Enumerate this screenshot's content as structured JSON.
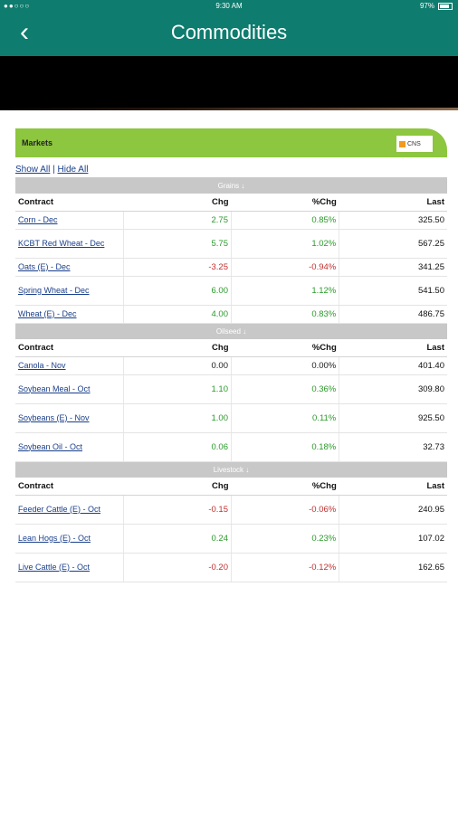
{
  "status": {
    "signal": "●●○○○",
    "time": "9:30 AM",
    "battery": "97%"
  },
  "nav": {
    "back_glyph": "‹",
    "title": "Commodities"
  },
  "panel": {
    "title": "Markets",
    "logo": "CNS",
    "show_all": "Show All",
    "separator": " | ",
    "hide_all": "Hide All"
  },
  "columns": {
    "contract": "Contract",
    "chg": "Chg",
    "pct": "%Chg",
    "last": "Last"
  },
  "sections": [
    {
      "name": "Grains ↓",
      "rows": [
        {
          "contract": "Corn - Dec",
          "chg": "2.75",
          "pct": "0.85%",
          "last": "325.50",
          "dir": "up",
          "tall": false
        },
        {
          "contract": "KCBT Red Wheat - Dec",
          "chg": "5.75",
          "pct": "1.02%",
          "last": "567.25",
          "dir": "up",
          "tall": true
        },
        {
          "contract": "Oats (E) - Dec",
          "chg": "-3.25",
          "pct": "-0.94%",
          "last": "341.25",
          "dir": "down",
          "tall": false
        },
        {
          "contract": "Spring Wheat - Dec",
          "chg": "6.00",
          "pct": "1.12%",
          "last": "541.50",
          "dir": "up",
          "tall": true
        },
        {
          "contract": "Wheat (E) - Dec",
          "chg": "4.00",
          "pct": "0.83%",
          "last": "486.75",
          "dir": "up",
          "tall": false
        }
      ]
    },
    {
      "name": "Oilseed ↓",
      "rows": [
        {
          "contract": "Canola - Nov",
          "chg": "0.00",
          "pct": "0.00%",
          "last": "401.40",
          "dir": "flat",
          "tall": false
        },
        {
          "contract": "Soybean Meal - Oct",
          "chg": "1.10",
          "pct": "0.36%",
          "last": "309.80",
          "dir": "up",
          "tall": true
        },
        {
          "contract": "Soybeans (E) - Nov",
          "chg": "1.00",
          "pct": "0.11%",
          "last": "925.50",
          "dir": "up",
          "tall": true
        },
        {
          "contract": "Soybean Oil - Oct",
          "chg": "0.06",
          "pct": "0.18%",
          "last": "32.73",
          "dir": "up",
          "tall": true
        }
      ]
    },
    {
      "name": "Livestock ↓",
      "rows": [
        {
          "contract": "Feeder Cattle (E) - Oct",
          "chg": "-0.15",
          "pct": "-0.06%",
          "last": "240.95",
          "dir": "down",
          "tall": true
        },
        {
          "contract": "Lean Hogs (E) - Oct",
          "chg": "0.24",
          "pct": "0.23%",
          "last": "107.02",
          "dir": "up",
          "tall": true
        },
        {
          "contract": "Live Cattle (E) - Oct",
          "chg": "-0.20",
          "pct": "-0.12%",
          "last": "162.65",
          "dir": "down",
          "tall": true
        }
      ]
    }
  ],
  "colors": {
    "header_bg": "#0e7c6e",
    "panel_accent": "#8dc63f",
    "positive": "#2a9a2a",
    "negative": "#c03030",
    "link": "#1a3f8a"
  }
}
